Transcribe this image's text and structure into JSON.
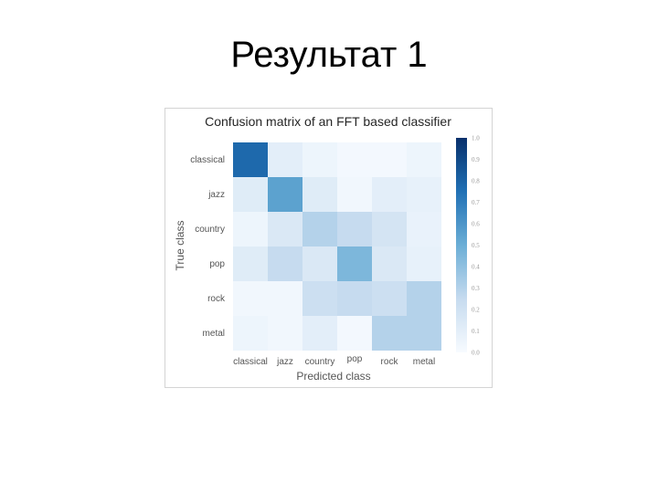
{
  "slide": {
    "title": "Результат 1"
  },
  "chart_data": {
    "type": "heatmap",
    "title": "Confusion matrix of an FFT based classifier",
    "xlabel": "Predicted class",
    "ylabel": "True class",
    "x_categories": [
      "classical",
      "jazz",
      "country",
      "pop",
      "rock",
      "metal"
    ],
    "y_categories": [
      "classical",
      "jazz",
      "country",
      "pop",
      "rock",
      "metal"
    ],
    "values": [
      [
        0.78,
        0.1,
        0.05,
        0.02,
        0.02,
        0.05
      ],
      [
        0.12,
        0.55,
        0.12,
        0.03,
        0.1,
        0.08
      ],
      [
        0.05,
        0.15,
        0.3,
        0.25,
        0.18,
        0.07
      ],
      [
        0.12,
        0.25,
        0.15,
        0.45,
        0.15,
        0.08
      ],
      [
        0.03,
        0.03,
        0.22,
        0.25,
        0.22,
        0.3
      ],
      [
        0.05,
        0.03,
        0.1,
        0.02,
        0.3,
        0.3
      ]
    ],
    "colorbar": {
      "min": 0.0,
      "max": 1.0,
      "ticks": [
        "0.0",
        "0.1",
        "0.2",
        "0.3",
        "0.4",
        "0.5",
        "0.6",
        "0.7",
        "0.8",
        "0.9",
        "1.0"
      ]
    },
    "colors": {
      "low": "#f7fbff",
      "high": "#08306b"
    }
  }
}
